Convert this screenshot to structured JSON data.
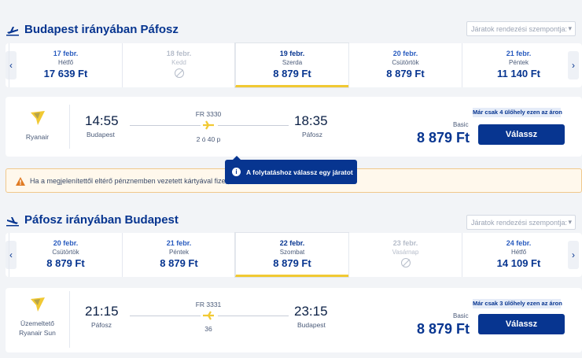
{
  "outbound": {
    "title": "Budapest irányában Páfosz",
    "sort_placeholder": "Járatok rendezési szempontja:",
    "dates": [
      {
        "date": "17 febr.",
        "weekday": "Hétfő",
        "price": "17 639 Ft",
        "available": true,
        "selected": false
      },
      {
        "date": "18 febr.",
        "weekday": "Kedd",
        "price": "",
        "available": false,
        "selected": false
      },
      {
        "date": "19 febr.",
        "weekday": "Szerda",
        "price": "8 879 Ft",
        "available": true,
        "selected": true
      },
      {
        "date": "20 febr.",
        "weekday": "Csütörtök",
        "price": "8 879 Ft",
        "available": true,
        "selected": false
      },
      {
        "date": "21 febr.",
        "weekday": "Péntek",
        "price": "11 140 Ft",
        "available": true,
        "selected": false
      }
    ],
    "flight": {
      "airline": "Ryanair",
      "operator_label": "",
      "depart_time": "14:55",
      "depart_city": "Budapest",
      "flight_no": "FR 3330",
      "duration": "2 ó 40 p",
      "arrive_time": "18:35",
      "arrive_city": "Páfosz",
      "seats_left": "Már csak 4 ülőhely ezen az áron",
      "fare_type": "Basic",
      "price": "8 879 Ft",
      "select_label": "Válassz"
    }
  },
  "warning": {
    "text": "Ha a megjelenítettől eltérő pénznemben vezetett kártyával fizet, a"
  },
  "tooltip": {
    "text": "A folytatáshoz válassz egy járatot"
  },
  "inbound": {
    "title": "Páfosz irányában Budapest",
    "sort_placeholder": "Járatok rendezési szempontja:",
    "dates": [
      {
        "date": "20 febr.",
        "weekday": "Csütörtök",
        "price": "8 879 Ft",
        "available": true,
        "selected": false
      },
      {
        "date": "21 febr.",
        "weekday": "Péntek",
        "price": "8 879 Ft",
        "available": true,
        "selected": false
      },
      {
        "date": "22 febr.",
        "weekday": "Szombat",
        "price": "8 879 Ft",
        "available": true,
        "selected": true
      },
      {
        "date": "23 febr.",
        "weekday": "Vasárnap",
        "price": "",
        "available": false,
        "selected": false
      },
      {
        "date": "24 febr.",
        "weekday": "Hétfő",
        "price": "14 109 Ft",
        "available": true,
        "selected": false
      }
    ],
    "flight": {
      "airline": "Ryanair Sun",
      "operator_label": "Üzemeltető",
      "depart_time": "21:15",
      "depart_city": "Páfosz",
      "flight_no": "FR 3331",
      "duration": "36",
      "arrive_time": "23:15",
      "arrive_city": "Budapest",
      "seats_left": "Már csak 3 ülőhely ezen az áron",
      "fare_type": "Basic",
      "price": "8 879 Ft",
      "select_label": "Válassz"
    }
  },
  "colors": {
    "brand": "#073590",
    "accent": "#f1c933",
    "warning_border": "#f0c88c"
  },
  "icons": [
    "plane-icon",
    "ryanair-harp-logo",
    "info-icon",
    "warning-icon",
    "chevron-left-icon",
    "chevron-right-icon",
    "no-flight-icon"
  ]
}
